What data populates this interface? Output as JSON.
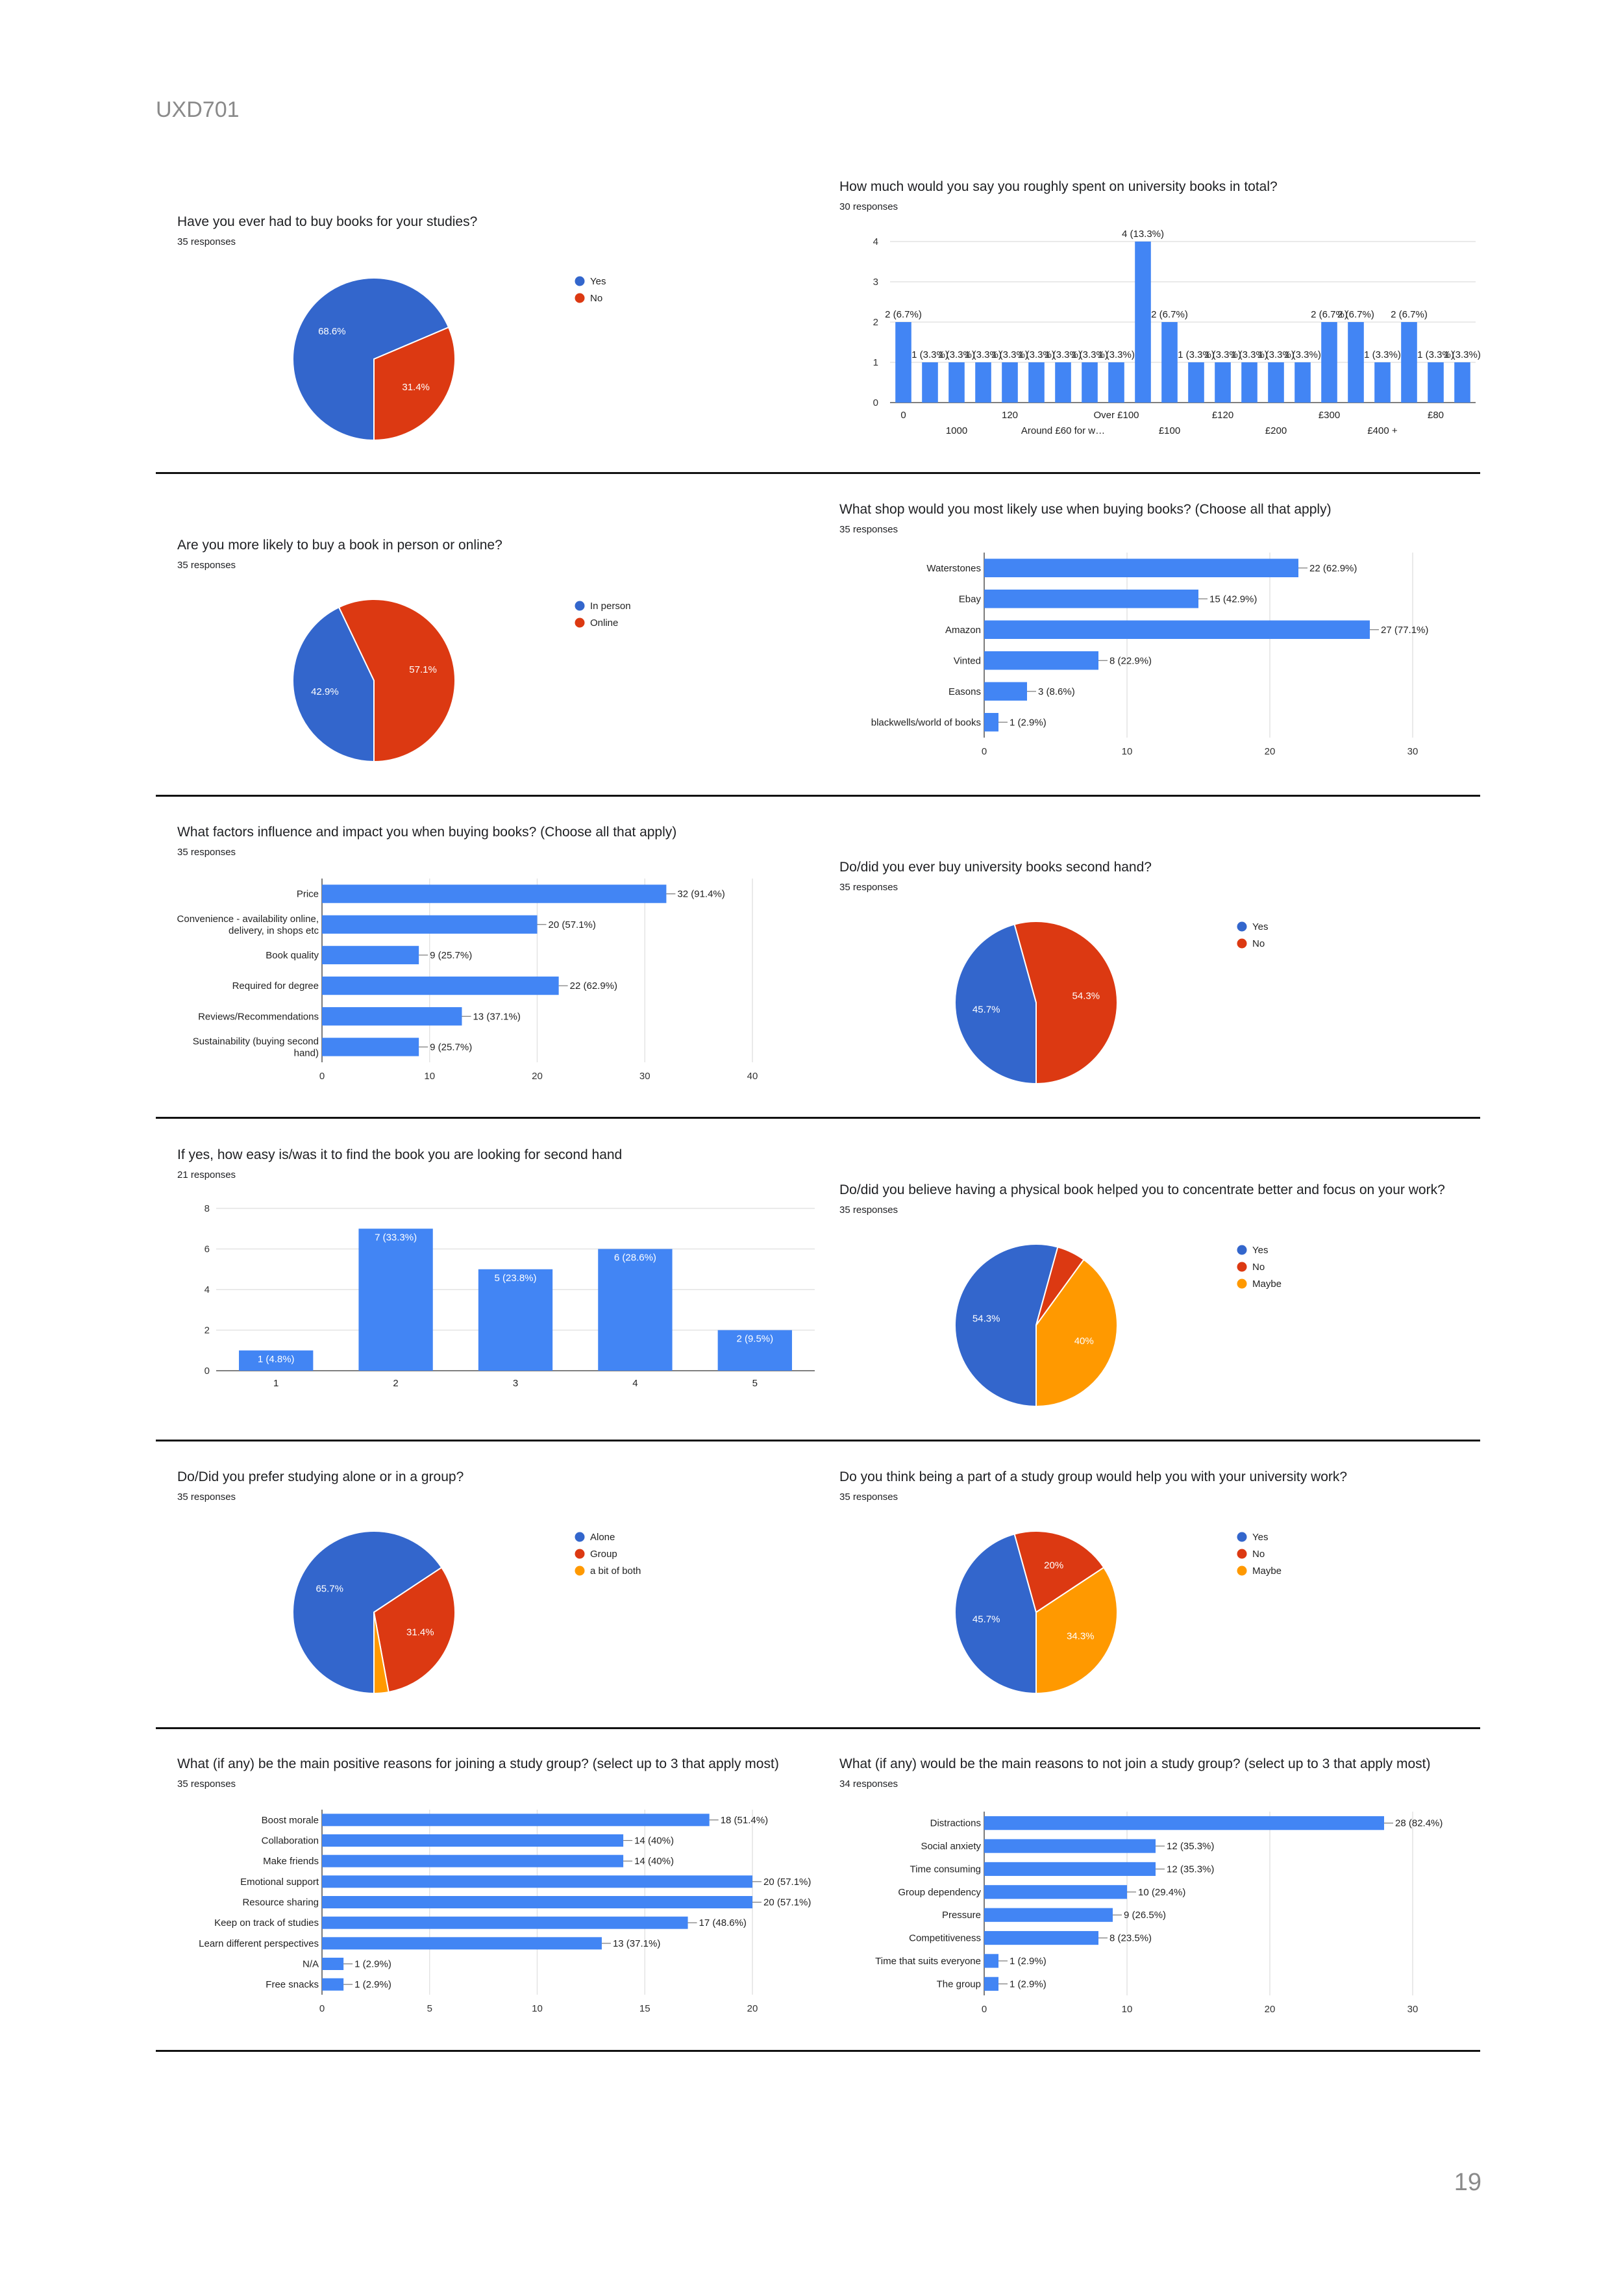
{
  "header": "UXD701",
  "page_number": "19",
  "colors": {
    "blue": "#3366cc",
    "bar": "#4285f4",
    "red": "#dc3912",
    "orange": "#ff9900"
  },
  "charts": {
    "buy_books": {
      "title": "Have you ever had to buy books for your studies?",
      "responses": "35 responses",
      "chart_data": {
        "type": "pie",
        "labels": [
          "Yes",
          "No"
        ],
        "values": [
          68.6,
          31.4
        ],
        "value_labels": [
          "68.6%",
          "31.4%"
        ],
        "legend": [
          "Yes",
          "No"
        ]
      }
    },
    "spent_total": {
      "title": "How much would you say you roughly spent on university books in total?",
      "responses": "30 responses",
      "chart_data": {
        "type": "bar",
        "ylim": [
          0,
          4
        ],
        "yticks": [
          "0",
          "1",
          "2",
          "3",
          "4"
        ],
        "values": [
          2,
          1,
          1,
          1,
          1,
          1,
          1,
          1,
          1,
          4,
          2,
          1,
          1,
          1,
          1,
          1,
          2,
          2,
          1,
          2,
          1,
          1
        ],
        "value_labels": [
          "2 (6.7%)",
          "1 (3.3%)",
          "1 (3.3%)",
          "1 (3.3%)",
          "1 (3.3%)",
          "1 (3.3%)",
          "1 (3.3%)",
          "1 (3.3%)",
          "1 (3.3%)",
          "4 (13.3%)",
          "2 (6.7%)",
          "1 (3.3%)",
          "1 (3.3%)",
          "1 (3.3%)",
          "1 (3.3%)",
          "1 (3.3%)",
          "2 (6.7%)",
          "2 (6.7%)",
          "1 (3.3%)",
          "2 (6.7%)",
          "1 (3.3%)",
          "1 (3.3%)"
        ],
        "xticks_row1": [
          "0",
          "120",
          "Over £100",
          "£120",
          "£300",
          "£80"
        ],
        "xticks_row2": [
          "1000",
          "Around £60 for w…",
          "£100",
          "£200",
          "£400 +"
        ]
      }
    },
    "person_online": {
      "title": "Are you more likely to buy a book in person or online?",
      "responses": "35 responses",
      "chart_data": {
        "type": "pie",
        "labels": [
          "In person",
          "Online"
        ],
        "values": [
          42.9,
          57.1
        ],
        "value_labels": [
          "42.9%",
          "57.1%"
        ],
        "legend": [
          "In person",
          "Online"
        ]
      }
    },
    "shop": {
      "title": "What shop would you most likely use when buying books? (Choose all that apply)",
      "responses": "35 responses",
      "chart_data": {
        "type": "bar",
        "orientation": "horizontal",
        "categories": [
          "Waterstones",
          "Ebay",
          "Amazon",
          "Vinted",
          "Easons",
          "blackwells/world of books"
        ],
        "values": [
          22,
          15,
          27,
          8,
          3,
          1
        ],
        "value_labels": [
          "22 (62.9%)",
          "15 (42.9%)",
          "27 (77.1%)",
          "8 (22.9%)",
          "3 (8.6%)",
          "1 (2.9%)"
        ],
        "xlim": [
          0,
          30
        ],
        "xticks": [
          "0",
          "10",
          "20",
          "30"
        ]
      }
    },
    "factors": {
      "title": "What factors influence and impact you when buying books? (Choose all that apply)",
      "responses": "35 responses",
      "chart_data": {
        "type": "bar",
        "orientation": "horizontal",
        "categories": [
          [
            "Price"
          ],
          [
            "Convenience - availability online,",
            "delivery, in shops etc"
          ],
          [
            "Book quality"
          ],
          [
            "Required for degree"
          ],
          [
            "Reviews/Recommendations"
          ],
          [
            "Sustainability (buying second",
            "hand)"
          ]
        ],
        "values": [
          32,
          20,
          9,
          22,
          13,
          9
        ],
        "value_labels": [
          "32 (91.4%)",
          "20 (57.1%)",
          "9 (25.7%)",
          "22 (62.9%)",
          "13 (37.1%)",
          "9 (25.7%)"
        ],
        "xlim": [
          0,
          40
        ],
        "xticks": [
          "0",
          "10",
          "20",
          "30",
          "40"
        ]
      }
    },
    "second_hand": {
      "title": "Do/did you ever buy university books second hand?",
      "responses": "35 responses",
      "chart_data": {
        "type": "pie",
        "labels": [
          "Yes",
          "No"
        ],
        "values": [
          45.7,
          54.3
        ],
        "value_labels": [
          "45.7%",
          "54.3%"
        ],
        "legend": [
          "Yes",
          "No"
        ]
      }
    },
    "how_easy": {
      "title": "If yes, how easy is/was it to find the book you are looking for second hand",
      "responses": "21 responses",
      "chart_data": {
        "type": "bar",
        "categories": [
          "1",
          "2",
          "3",
          "4",
          "5"
        ],
        "values": [
          1,
          7,
          5,
          6,
          2
        ],
        "value_labels": [
          "1 (4.8%)",
          "7 (33.3%)",
          "5 (23.8%)",
          "6 (28.6%)",
          "2 (9.5%)"
        ],
        "ylim": [
          0,
          8
        ],
        "yticks": [
          "0",
          "2",
          "4",
          "6",
          "8"
        ]
      }
    },
    "physical_book": {
      "title": "Do/did you believe having a physical book helped you to concentrate better and focus on your work?",
      "responses": "35 responses",
      "chart_data": {
        "type": "pie",
        "labels": [
          "Yes",
          "No",
          "Maybe"
        ],
        "values": [
          54.3,
          5.7,
          40
        ],
        "value_labels": [
          "54.3%",
          "",
          "40%"
        ],
        "legend": [
          "Yes",
          "No",
          "Maybe"
        ]
      }
    },
    "alone_group": {
      "title": "Do/Did you prefer studying alone or in a group?",
      "responses": "35 responses",
      "chart_data": {
        "type": "pie",
        "labels": [
          "Alone",
          "Group",
          "a bit of both"
        ],
        "values": [
          65.7,
          31.4,
          2.9
        ],
        "value_labels": [
          "65.7%",
          "31.4%",
          ""
        ],
        "legend": [
          "Alone",
          "Group",
          "a bit of both"
        ]
      }
    },
    "study_group_help": {
      "title": "Do you think being a part of a study group would help you with your university work?",
      "responses": "35 responses",
      "chart_data": {
        "type": "pie",
        "labels": [
          "Yes",
          "No",
          "Maybe"
        ],
        "values": [
          45.7,
          20,
          34.3
        ],
        "value_labels": [
          "45.7%",
          "20%",
          "34.3%"
        ],
        "legend": [
          "Yes",
          "No",
          "Maybe"
        ]
      }
    },
    "positive_reasons": {
      "title": "What (if any) be the main positive reasons for joining a study group? (select up to 3 that apply most)",
      "responses": "35 responses",
      "chart_data": {
        "type": "bar",
        "orientation": "horizontal",
        "categories": [
          [
            "Boost morale"
          ],
          [
            "Collaboration"
          ],
          [
            "Make friends"
          ],
          [
            "Emotional support"
          ],
          [
            "Resource sharing"
          ],
          [
            "Keep on track of studies"
          ],
          [
            "Learn different perspectives"
          ],
          [
            "N/A"
          ],
          [
            "Free snacks"
          ]
        ],
        "values": [
          18,
          14,
          14,
          20,
          20,
          17,
          13,
          1,
          1
        ],
        "value_labels": [
          "18 (51.4%)",
          "14 (40%)",
          "14 (40%)",
          "20 (57.1%)",
          "20 (57.1%)",
          "17 (48.6%)",
          "13 (37.1%)",
          "1 (2.9%)",
          "1 (2.9%)"
        ],
        "xlim": [
          0,
          20
        ],
        "xticks": [
          "0",
          "5",
          "10",
          "15",
          "20"
        ]
      }
    },
    "negative_reasons": {
      "title": "What (if any) would be the main reasons to not join a study group? (select up to 3 that apply most)",
      "responses": "34 responses",
      "chart_data": {
        "type": "bar",
        "orientation": "horizontal",
        "categories": [
          [
            "Distractions"
          ],
          [
            "Social anxiety"
          ],
          [
            "Time consuming"
          ],
          [
            "Group dependency"
          ],
          [
            "Pressure"
          ],
          [
            "Competitiveness"
          ],
          [
            "Time that suits everyone"
          ],
          [
            "The group"
          ]
        ],
        "values": [
          28,
          12,
          12,
          10,
          9,
          8,
          1,
          1
        ],
        "value_labels": [
          "28 (82.4%)",
          "12 (35.3%)",
          "12 (35.3%)",
          "10 (29.4%)",
          "9 (26.5%)",
          "8 (23.5%)",
          "1 (2.9%)",
          "1 (2.9%)"
        ],
        "xlim": [
          0,
          30
        ],
        "xticks": [
          "0",
          "10",
          "20",
          "30"
        ]
      }
    }
  }
}
